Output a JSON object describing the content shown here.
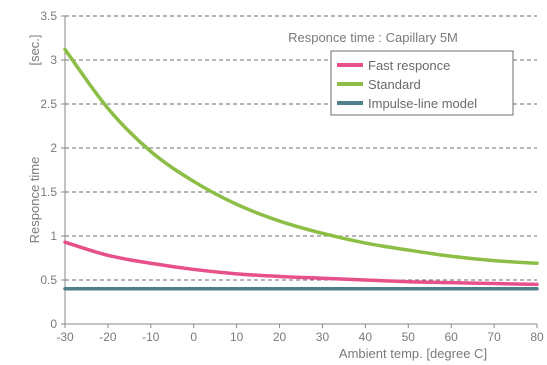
{
  "chart_data": {
    "type": "line",
    "title": "Responce time : Capillary 5M",
    "xlabel": "Ambient temp. [degree C]",
    "ylabel": "Responce time",
    "yunit": "[sec.]",
    "xlim": [
      -30,
      80
    ],
    "ylim": [
      0,
      3.5
    ],
    "x_ticks": [
      -30,
      -20,
      -10,
      0,
      10,
      20,
      30,
      40,
      50,
      60,
      70,
      80
    ],
    "y_ticks": [
      "0",
      "0.5",
      "1",
      "1.5",
      "2",
      "2.5",
      "3",
      "3.5"
    ],
    "grid": "horizontal dashed",
    "legend_position": "top-right",
    "x": [
      -30,
      -20,
      -10,
      0,
      10,
      20,
      30,
      40,
      50,
      60,
      70,
      80
    ],
    "series": [
      {
        "name": "Fast responce",
        "color": "#e8508a",
        "values": [
          0.93,
          0.78,
          0.69,
          0.62,
          0.57,
          0.54,
          0.52,
          0.5,
          0.48,
          0.47,
          0.46,
          0.45
        ]
      },
      {
        "name": "Standard",
        "color": "#8cbd45",
        "values": [
          3.12,
          2.45,
          1.96,
          1.62,
          1.36,
          1.17,
          1.03,
          0.92,
          0.84,
          0.77,
          0.72,
          0.69
        ]
      },
      {
        "name": "Impulse-line model",
        "color": "#4f7f8a",
        "values": [
          0.4,
          0.4,
          0.4,
          0.4,
          0.4,
          0.4,
          0.4,
          0.4,
          0.4,
          0.4,
          0.4,
          0.4
        ]
      }
    ]
  }
}
